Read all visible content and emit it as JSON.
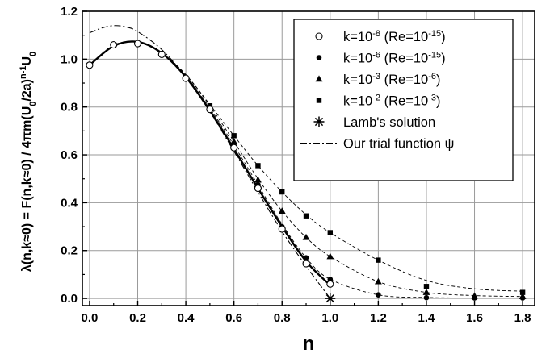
{
  "chart_data": {
    "type": "scatter",
    "xlabel": "n",
    "ylabel": {
      "parts": [
        {
          "t": "λ(n,k≈0) = F(n,k≈0) / 4πm(U",
          "s": "n"
        },
        {
          "t": "0",
          "s": "sub"
        },
        {
          "t": "/2a)",
          "s": "n"
        },
        {
          "t": "n-1",
          "s": "sup"
        },
        {
          "t": "U",
          "s": "n"
        },
        {
          "t": "0",
          "s": "sub"
        }
      ]
    },
    "xlim": [
      -0.03,
      1.85
    ],
    "ylim": [
      -0.03,
      1.2
    ],
    "xticks": [
      "0.0",
      "0.2",
      "0.4",
      "0.6",
      "0.8",
      "1.0",
      "1.2",
      "1.4",
      "1.6",
      "1.8"
    ],
    "xtick_values": [
      0.0,
      0.2,
      0.4,
      0.6,
      0.8,
      1.0,
      1.2,
      1.4,
      1.6,
      1.8
    ],
    "yticks": [
      "0.0",
      "0.2",
      "0.4",
      "0.6",
      "0.8",
      "1.0",
      "1.2"
    ],
    "ytick_values": [
      0.0,
      0.2,
      0.4,
      0.6,
      0.8,
      1.0,
      1.2
    ],
    "grid": true,
    "legend_position": "top-right",
    "series": [
      {
        "name": "k=10-8 (Re=10-15)",
        "legend": {
          "parts": [
            {
              "t": "k=10",
              "s": "n"
            },
            {
              "t": "-8",
              "s": "sup"
            },
            {
              "t": " (Re=10",
              "s": "n"
            },
            {
              "t": "-15",
              "s": "sup"
            },
            {
              "t": ")",
              "s": "n"
            }
          ]
        },
        "marker": "open-circle",
        "points": [
          [
            0.0,
            0.975
          ],
          [
            0.1,
            1.06
          ],
          [
            0.2,
            1.065
          ],
          [
            0.3,
            1.02
          ],
          [
            0.4,
            0.92
          ],
          [
            0.5,
            0.79
          ],
          [
            0.6,
            0.63
          ],
          [
            0.7,
            0.46
          ],
          [
            0.8,
            0.29
          ],
          [
            0.9,
            0.145
          ],
          [
            1.0,
            0.06
          ]
        ],
        "curve": [
          [
            0.0,
            0.975
          ],
          [
            0.1,
            1.055
          ],
          [
            0.2,
            1.072
          ],
          [
            0.3,
            1.025
          ],
          [
            0.4,
            0.925
          ],
          [
            0.5,
            0.785
          ],
          [
            0.6,
            0.625
          ],
          [
            0.7,
            0.46
          ],
          [
            0.8,
            0.3
          ],
          [
            0.9,
            0.155
          ],
          [
            1.0,
            0.055
          ]
        ],
        "line_style": "solid-thick"
      },
      {
        "name": "k=10-6 (Re=10-15)",
        "legend": {
          "parts": [
            {
              "t": "k=10",
              "s": "n"
            },
            {
              "t": "-6",
              "s": "sup"
            },
            {
              "t": " (Re=10",
              "s": "n"
            },
            {
              "t": "-15",
              "s": "sup"
            },
            {
              "t": ")",
              "s": "n"
            }
          ]
        },
        "marker": "filled-circle",
        "points": [
          [
            0.0,
            0.975
          ],
          [
            0.1,
            1.06
          ],
          [
            0.2,
            1.065
          ],
          [
            0.3,
            1.02
          ],
          [
            0.4,
            0.925
          ],
          [
            0.5,
            0.79
          ],
          [
            0.6,
            0.64
          ],
          [
            0.7,
            0.475
          ],
          [
            0.8,
            0.3
          ],
          [
            0.9,
            0.17
          ],
          [
            1.0,
            0.08
          ],
          [
            1.2,
            0.015
          ],
          [
            1.4,
            0.003
          ],
          [
            1.6,
            0.002
          ],
          [
            1.8,
            0.002
          ]
        ],
        "curve": [
          [
            0.0,
            0.975
          ],
          [
            0.1,
            1.058
          ],
          [
            0.2,
            1.07
          ],
          [
            0.3,
            1.025
          ],
          [
            0.4,
            0.93
          ],
          [
            0.5,
            0.795
          ],
          [
            0.6,
            0.64
          ],
          [
            0.7,
            0.475
          ],
          [
            0.8,
            0.31
          ],
          [
            0.9,
            0.17
          ],
          [
            1.0,
            0.08
          ],
          [
            1.2,
            0.015
          ],
          [
            1.4,
            0.004
          ],
          [
            1.6,
            0.002
          ],
          [
            1.8,
            0.002
          ]
        ],
        "line_style": "dashed"
      },
      {
        "name": "k=10-3 (Re=10-6)",
        "legend": {
          "parts": [
            {
              "t": "k=10",
              "s": "n"
            },
            {
              "t": "-3",
              "s": "sup"
            },
            {
              "t": " (Re=10",
              "s": "n"
            },
            {
              "t": "-6",
              "s": "sup"
            },
            {
              "t": ")",
              "s": "n"
            }
          ]
        },
        "marker": "filled-triangle",
        "points": [
          [
            0.5,
            0.8
          ],
          [
            0.6,
            0.655
          ],
          [
            0.7,
            0.495
          ],
          [
            0.8,
            0.365
          ],
          [
            0.9,
            0.255
          ],
          [
            1.0,
            0.175
          ],
          [
            1.2,
            0.07
          ],
          [
            1.4,
            0.025
          ],
          [
            1.6,
            0.01
          ],
          [
            1.8,
            0.008
          ]
        ],
        "curve": [
          [
            0.0,
            0.975
          ],
          [
            0.1,
            1.058
          ],
          [
            0.2,
            1.07
          ],
          [
            0.3,
            1.025
          ],
          [
            0.4,
            0.935
          ],
          [
            0.5,
            0.805
          ],
          [
            0.6,
            0.655
          ],
          [
            0.7,
            0.5
          ],
          [
            0.8,
            0.365
          ],
          [
            0.9,
            0.255
          ],
          [
            1.0,
            0.175
          ],
          [
            1.2,
            0.07
          ],
          [
            1.4,
            0.025
          ],
          [
            1.6,
            0.012
          ],
          [
            1.8,
            0.008
          ]
        ],
        "line_style": "dashed"
      },
      {
        "name": "k=10-2 (Re=10-3)",
        "legend": {
          "parts": [
            {
              "t": "k=10",
              "s": "n"
            },
            {
              "t": "-2",
              "s": "sup"
            },
            {
              "t": " (Re=10",
              "s": "n"
            },
            {
              "t": "-3",
              "s": "sup"
            },
            {
              "t": ")",
              "s": "n"
            }
          ]
        },
        "marker": "filled-square",
        "points": [
          [
            0.5,
            0.805
          ],
          [
            0.6,
            0.68
          ],
          [
            0.7,
            0.555
          ],
          [
            0.8,
            0.445
          ],
          [
            0.9,
            0.345
          ],
          [
            1.0,
            0.275
          ],
          [
            1.2,
            0.16
          ],
          [
            1.4,
            0.05
          ],
          [
            1.8,
            0.025
          ]
        ],
        "curve": [
          [
            0.0,
            0.975
          ],
          [
            0.1,
            1.058
          ],
          [
            0.2,
            1.07
          ],
          [
            0.3,
            1.025
          ],
          [
            0.4,
            0.935
          ],
          [
            0.5,
            0.81
          ],
          [
            0.6,
            0.68
          ],
          [
            0.7,
            0.555
          ],
          [
            0.8,
            0.445
          ],
          [
            0.9,
            0.35
          ],
          [
            1.0,
            0.275
          ],
          [
            1.2,
            0.16
          ],
          [
            1.4,
            0.075
          ],
          [
            1.6,
            0.04
          ],
          [
            1.8,
            0.03
          ]
        ],
        "line_style": "dashed"
      },
      {
        "name": "Lamb's solution",
        "legend": {
          "parts": [
            {
              "t": "Lamb's solution",
              "s": "n"
            }
          ]
        },
        "marker": "asterisk",
        "points": [
          [
            1.0,
            0.0
          ]
        ]
      },
      {
        "name": "Our trial function ψ",
        "legend": {
          "parts": [
            {
              "t": "Our trial function ",
              "s": "n"
            },
            {
              "t": "ψ",
              "s": "n"
            }
          ]
        },
        "marker": "none",
        "line_style": "dash-dot",
        "curve": [
          [
            0.0,
            1.11
          ],
          [
            0.05,
            1.13
          ],
          [
            0.1,
            1.14
          ],
          [
            0.15,
            1.135
          ],
          [
            0.2,
            1.115
          ],
          [
            0.3,
            1.04
          ],
          [
            0.4,
            0.925
          ],
          [
            0.5,
            0.78
          ],
          [
            0.6,
            0.615
          ],
          [
            0.7,
            0.445
          ],
          [
            0.8,
            0.28
          ],
          [
            0.9,
            0.135
          ],
          [
            1.0,
            0.0
          ]
        ]
      }
    ]
  }
}
